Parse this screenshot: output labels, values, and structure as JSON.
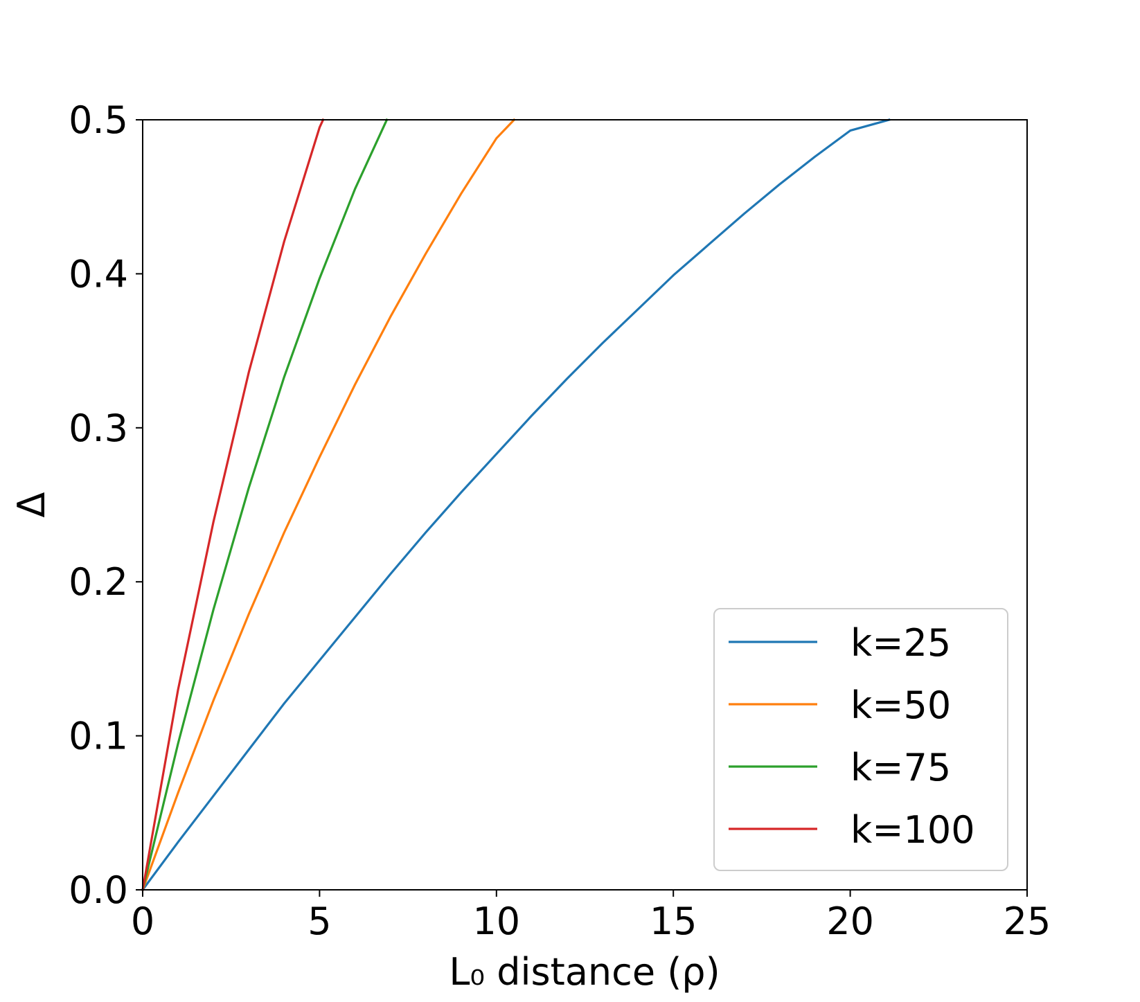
{
  "chart_data": {
    "type": "line",
    "title": "",
    "xlabel": "L₀ distance (ρ)",
    "ylabel": "Δ",
    "xlim": [
      0,
      25
    ],
    "ylim": [
      0,
      0.5
    ],
    "xticks": [
      0,
      5,
      10,
      15,
      20,
      25
    ],
    "yticks": [
      0.0,
      0.1,
      0.2,
      0.3,
      0.4,
      0.5
    ],
    "xtick_labels": [
      "0",
      "5",
      "10",
      "15",
      "20",
      "25"
    ],
    "ytick_labels": [
      "0.0",
      "0.1",
      "0.2",
      "0.3",
      "0.4",
      "0.5"
    ],
    "grid": false,
    "legend_position": "lower-right",
    "series": [
      {
        "name": "k=25",
        "color": "#1f77b4",
        "x": [
          0,
          1,
          2,
          3,
          4,
          5,
          6,
          7,
          8,
          9,
          10,
          11,
          12,
          13,
          14,
          15,
          16,
          17,
          18,
          19,
          20,
          21.1
        ],
        "y": [
          0,
          0.031,
          0.061,
          0.091,
          0.121,
          0.149,
          0.177,
          0.205,
          0.232,
          0.258,
          0.283,
          0.308,
          0.332,
          0.355,
          0.377,
          0.399,
          0.419,
          0.439,
          0.458,
          0.476,
          0.493,
          0.5
        ]
      },
      {
        "name": "k=50",
        "color": "#ff7f0e",
        "x": [
          0,
          1,
          2,
          3,
          4,
          5,
          6,
          7,
          8,
          9,
          10,
          10.5
        ],
        "y": [
          0,
          0.063,
          0.123,
          0.179,
          0.232,
          0.281,
          0.328,
          0.372,
          0.413,
          0.452,
          0.488,
          0.5
        ]
      },
      {
        "name": "k=75",
        "color": "#2ca02c",
        "x": [
          0,
          1,
          2,
          3,
          4,
          5,
          6,
          6.9
        ],
        "y": [
          0,
          0.095,
          0.182,
          0.261,
          0.333,
          0.397,
          0.455,
          0.5
        ]
      },
      {
        "name": "k=100",
        "color": "#d62728",
        "x": [
          0,
          1,
          2,
          3,
          4,
          5,
          5.1
        ],
        "y": [
          0,
          0.13,
          0.239,
          0.336,
          0.421,
          0.495,
          0.5
        ]
      }
    ]
  }
}
